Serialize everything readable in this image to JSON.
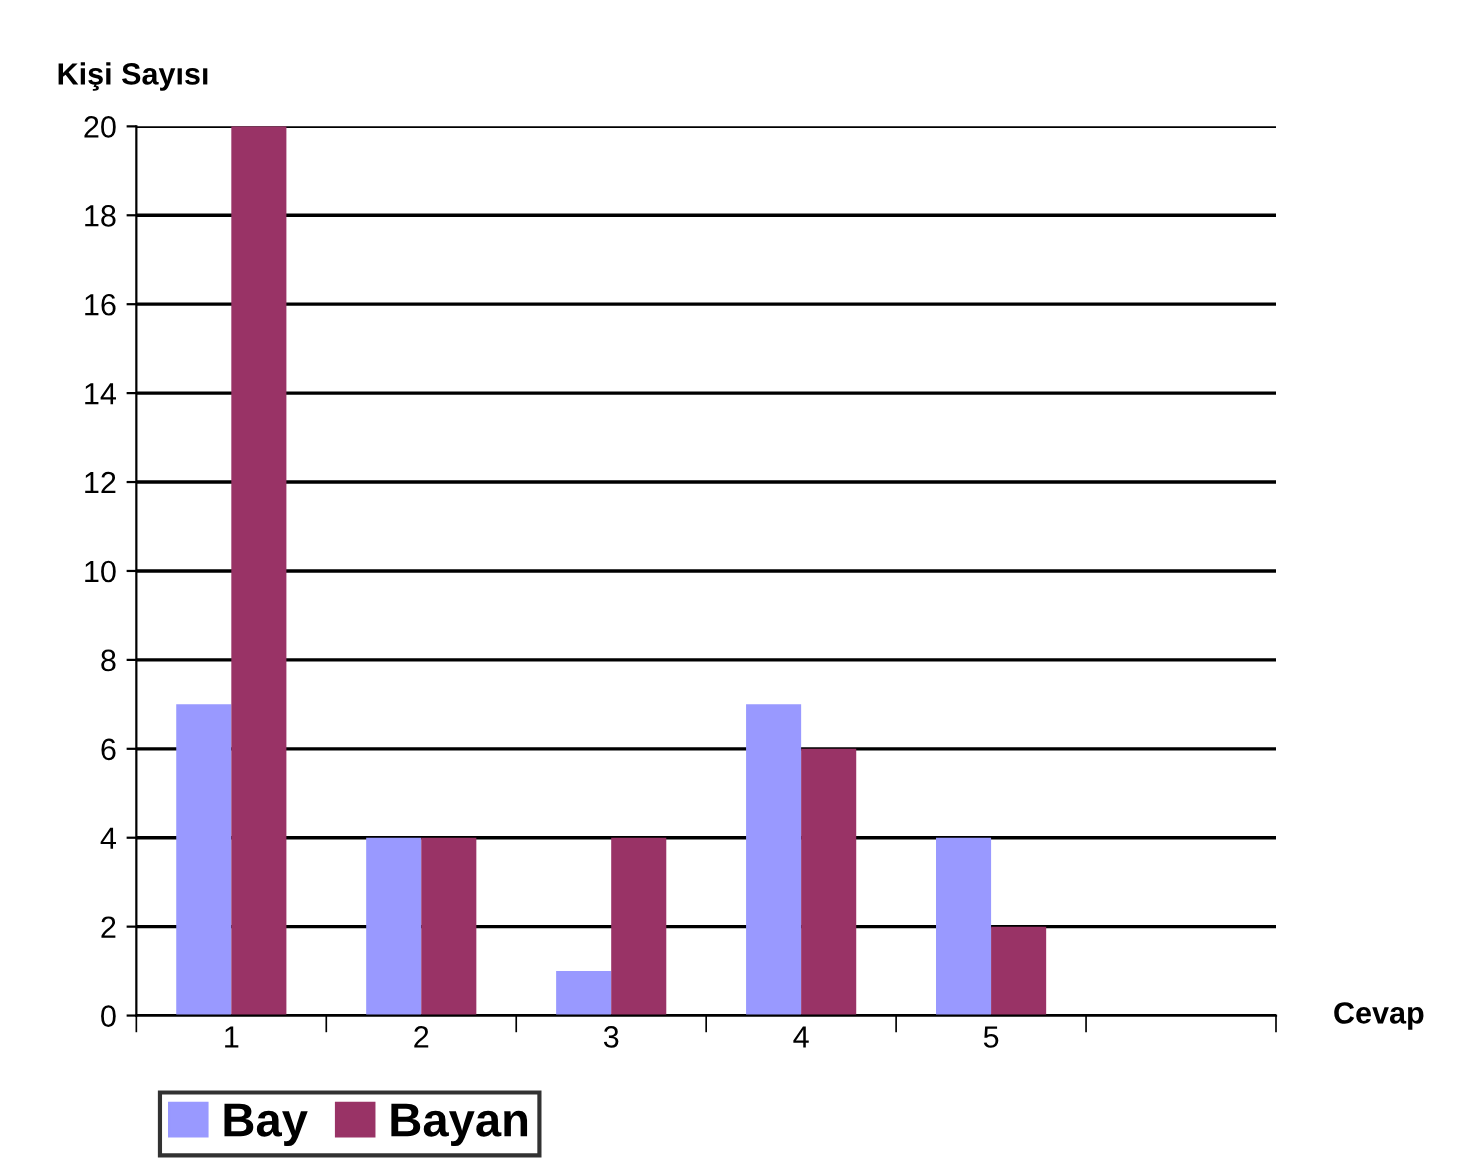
{
  "chart_data": {
    "type": "bar",
    "categories": [
      "1",
      "2",
      "3",
      "4",
      "5",
      null
    ],
    "series": [
      {
        "name": "Bay",
        "color": "#9999ff",
        "values": [
          7,
          4,
          1,
          7,
          4,
          null
        ]
      },
      {
        "name": "Bayan",
        "color": "#993366",
        "values": [
          20,
          4,
          4,
          6,
          2,
          null
        ]
      }
    ],
    "ylabel": "Kişi Sayısı",
    "xlabel": "Cevap",
    "ylim": [
      0,
      20
    ],
    "yticks": [
      0,
      2,
      4,
      6,
      8,
      10,
      12,
      14,
      16,
      18,
      20
    ],
    "grid": "y",
    "legend": "bottom left"
  }
}
